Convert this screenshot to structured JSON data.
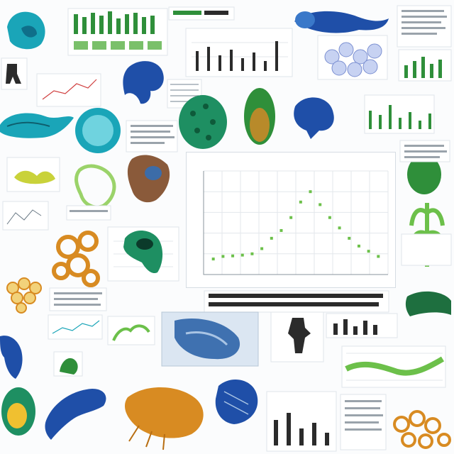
{
  "palette": {
    "blue": "#1f4fa8",
    "teal": "#1aa5b8",
    "green": "#2f8f3a",
    "light_green": "#9bd36a",
    "orange": "#d88b22",
    "dark": "#2b2b2b",
    "grid": "#e3e7eb"
  },
  "chart_data": {
    "type": "scatter",
    "title": "",
    "xlabel": "",
    "ylabel": "",
    "grid": true,
    "series": [
      {
        "color": "#6cc04a",
        "points": [
          [
            1,
            0.6
          ],
          [
            2,
            0.7
          ],
          [
            3,
            0.72
          ],
          [
            4,
            0.75
          ],
          [
            5,
            0.8
          ],
          [
            6,
            1.0
          ],
          [
            7,
            1.4
          ],
          [
            8,
            1.7
          ],
          [
            9,
            2.2
          ],
          [
            10,
            2.8
          ],
          [
            11,
            3.2
          ],
          [
            12,
            2.7
          ],
          [
            13,
            2.2
          ],
          [
            14,
            1.8
          ],
          [
            15,
            1.4
          ],
          [
            16,
            1.1
          ],
          [
            17,
            0.9
          ],
          [
            18,
            0.7
          ]
        ]
      }
    ],
    "xlim": [
      0,
      19
    ],
    "ylim": [
      0,
      4
    ]
  },
  "thumbnails": [
    {
      "id": "blue-fish-tl",
      "kind": "creature",
      "icon": "fish-icon",
      "color": "#1aa5b8"
    },
    {
      "id": "green-bars-top",
      "kind": "barplot",
      "icon": "bar-chart-icon",
      "color": "#2f8f3a"
    },
    {
      "id": "figure-panel-top",
      "kind": "figure",
      "icon": "figure-icon",
      "color": "#2f8f3a"
    },
    {
      "id": "chart-top-center",
      "kind": "barplot",
      "icon": "bar-chart-icon",
      "color": "#2b2b2b"
    },
    {
      "id": "blue-fish-top",
      "kind": "creature",
      "icon": "fish-icon",
      "color": "#1f4fa8"
    },
    {
      "id": "text-panel-tr",
      "kind": "text",
      "icon": "text-icon",
      "color": "#2b2b2b"
    },
    {
      "id": "scatter-top-right",
      "kind": "barplot",
      "icon": "bar-chart-icon",
      "color": "#2f8f3a"
    },
    {
      "id": "cells-top",
      "kind": "cells",
      "icon": "cells-icon",
      "color": "#7b8fd1"
    },
    {
      "id": "blue-worm",
      "kind": "creature",
      "icon": "worm-icon",
      "color": "#1f4fa8"
    },
    {
      "id": "green-seed",
      "kind": "creature",
      "icon": "seed-icon",
      "color": "#1e8f62"
    },
    {
      "id": "green-beetle",
      "kind": "creature",
      "icon": "beetle-icon",
      "color": "#2f8f3a"
    },
    {
      "id": "blue-fish-mid",
      "kind": "creature",
      "icon": "fish-icon",
      "color": "#1f4fa8"
    },
    {
      "id": "teal-disc",
      "kind": "creature",
      "icon": "disc-icon",
      "color": "#1aa5b8"
    },
    {
      "id": "teal-flatworm",
      "kind": "creature",
      "icon": "flatworm-icon",
      "color": "#1aa5b8"
    },
    {
      "id": "green-plant-left",
      "kind": "plant",
      "icon": "plant-icon",
      "color": "#9bd36a"
    },
    {
      "id": "brown-bug",
      "kind": "creature",
      "icon": "bug-icon",
      "color": "#8a5a3a"
    },
    {
      "id": "green-seed-right",
      "kind": "creature",
      "icon": "seed-icon",
      "color": "#2f8f3a"
    },
    {
      "id": "green-stem",
      "kind": "plant",
      "icon": "plant-icon",
      "color": "#6cc04a"
    },
    {
      "id": "orange-net",
      "kind": "network",
      "icon": "network-icon",
      "color": "#d88b22"
    },
    {
      "id": "teal-snail",
      "kind": "creature",
      "icon": "snail-icon",
      "color": "#1e8f62"
    },
    {
      "id": "orange-cells",
      "kind": "cells",
      "icon": "cells-icon",
      "color": "#d88b22"
    },
    {
      "id": "blue-lung",
      "kind": "figure",
      "icon": "lung-icon",
      "color": "#1f4fa8"
    },
    {
      "id": "silhouette",
      "kind": "figure",
      "icon": "silhouette-icon",
      "color": "#2b2b2b"
    },
    {
      "id": "green-branches",
      "kind": "plant",
      "icon": "branch-icon",
      "color": "#6cc04a"
    },
    {
      "id": "green-frog",
      "kind": "creature",
      "icon": "frog-icon",
      "color": "#2f8f3a"
    },
    {
      "id": "blue-fish-bottom",
      "kind": "creature",
      "icon": "fish-icon",
      "color": "#1f4fa8"
    },
    {
      "id": "egg-bottom-left",
      "kind": "creature",
      "icon": "egg-icon",
      "color": "#1e8f62"
    },
    {
      "id": "orange-shrimp",
      "kind": "creature",
      "icon": "shrimp-icon",
      "color": "#d88b22"
    },
    {
      "id": "blue-cone",
      "kind": "creature",
      "icon": "cone-icon",
      "color": "#1f4fa8"
    },
    {
      "id": "orange-net-br",
      "kind": "network",
      "icon": "network-icon",
      "color": "#d88b22"
    }
  ]
}
